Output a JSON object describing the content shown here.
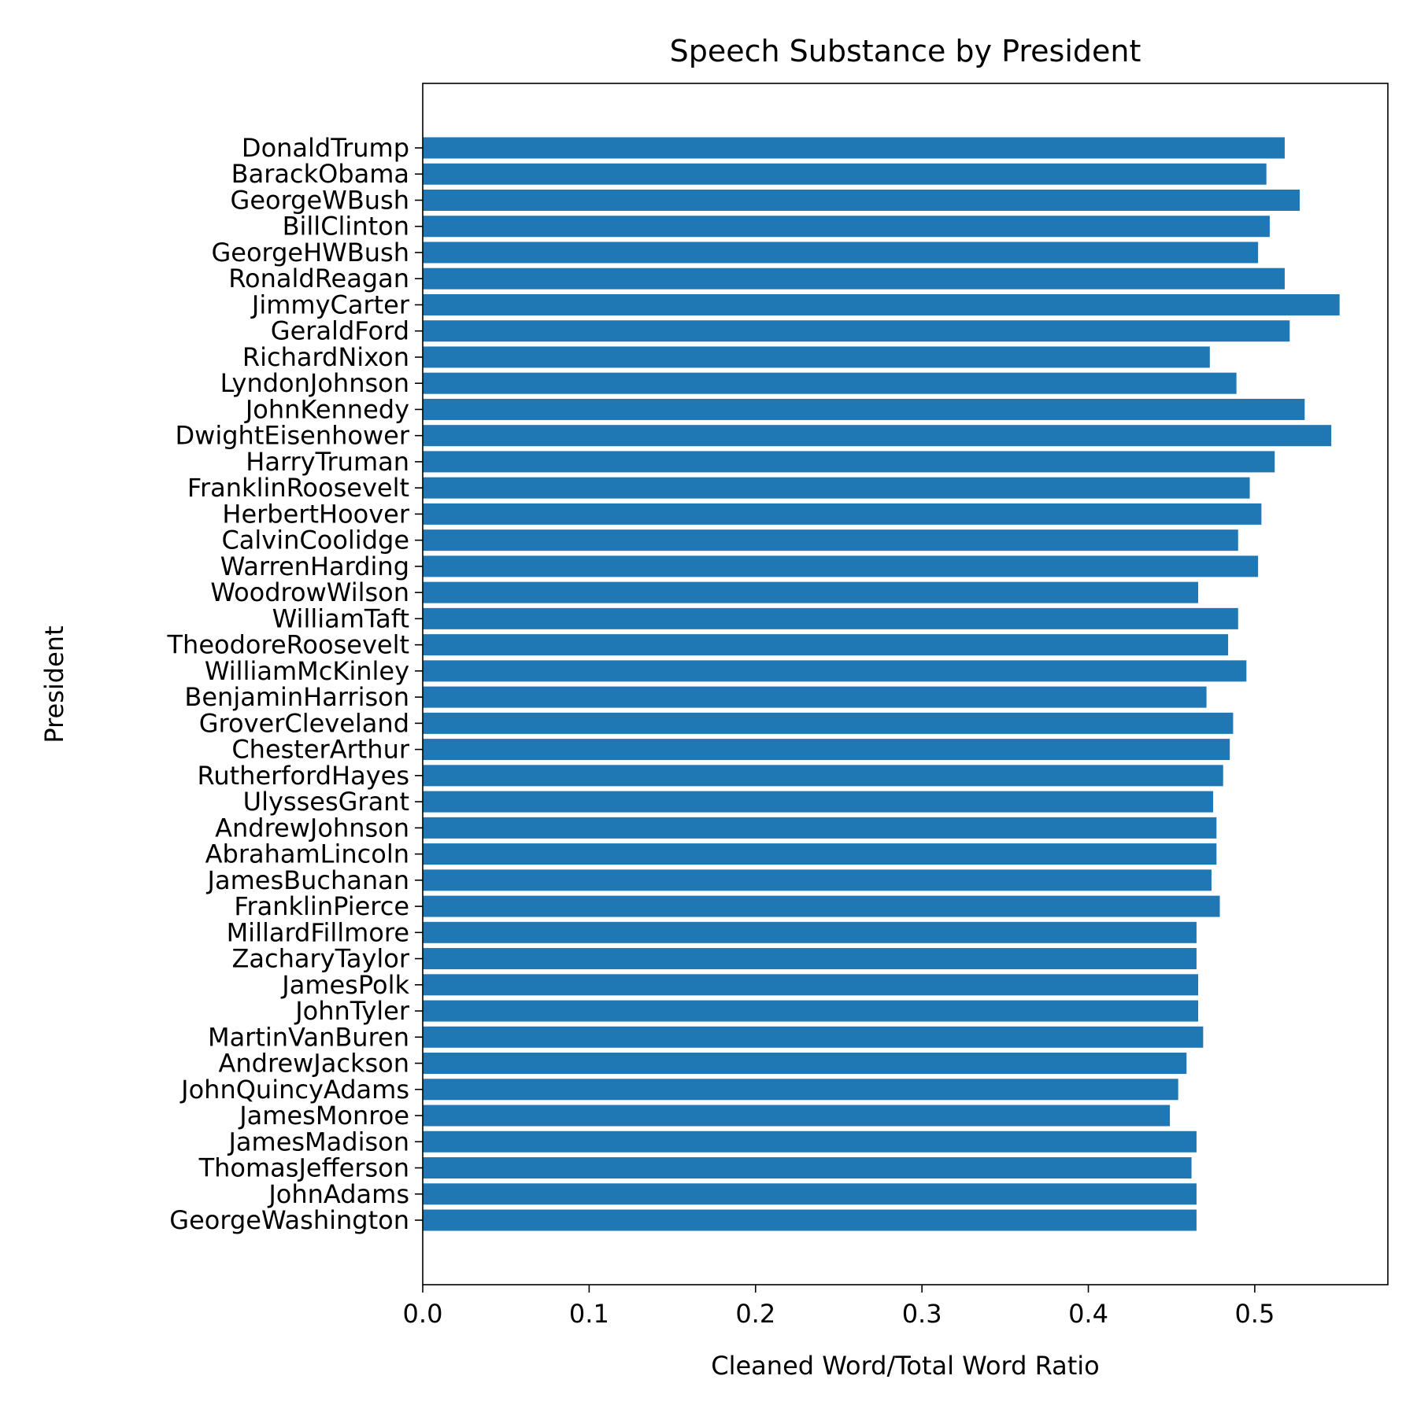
{
  "chart_data": {
    "type": "bar",
    "orientation": "horizontal",
    "title": "Speech Substance by President",
    "xlabel": "Cleaned Word/Total Word Ratio",
    "ylabel": "President",
    "xlim": [
      0,
      0.58
    ],
    "xticks": [
      "0.0",
      "0.1",
      "0.2",
      "0.3",
      "0.4",
      "0.5"
    ],
    "grid": false,
    "bar_color": "#1f77b4",
    "categories": [
      "GeorgeWashington",
      "JohnAdams",
      "ThomasJefferson",
      "JamesMadison",
      "JamesMonroe",
      "JohnQuincyAdams",
      "AndrewJackson",
      "MartinVanBuren",
      "JohnTyler",
      "JamesPolk",
      "ZacharyTaylor",
      "MillardFillmore",
      "FranklinPierce",
      "JamesBuchanan",
      "AbrahamLincoln",
      "AndrewJohnson",
      "UlyssesGrant",
      "RutherfordHayes",
      "ChesterArthur",
      "GroverCleveland",
      "BenjaminHarrison",
      "WilliamMcKinley",
      "TheodoreRoosevelt",
      "WilliamTaft",
      "WoodrowWilson",
      "WarrenHarding",
      "CalvinCoolidge",
      "HerbertHoover",
      "FranklinRoosevelt",
      "HarryTruman",
      "DwightEisenhower",
      "JohnKennedy",
      "LyndonJohnson",
      "RichardNixon",
      "GeraldFord",
      "JimmyCarter",
      "RonaldReagan",
      "GeorgeHWBush",
      "BillClinton",
      "GeorgeWBush",
      "BarackObama",
      "DonaldTrump"
    ],
    "values": [
      0.465,
      0.465,
      0.462,
      0.465,
      0.449,
      0.454,
      0.459,
      0.469,
      0.466,
      0.466,
      0.465,
      0.465,
      0.479,
      0.474,
      0.477,
      0.477,
      0.475,
      0.481,
      0.485,
      0.487,
      0.471,
      0.495,
      0.484,
      0.49,
      0.466,
      0.502,
      0.49,
      0.504,
      0.497,
      0.512,
      0.546,
      0.53,
      0.489,
      0.473,
      0.521,
      0.551,
      0.518,
      0.502,
      0.509,
      0.527,
      0.507,
      0.518
    ]
  }
}
